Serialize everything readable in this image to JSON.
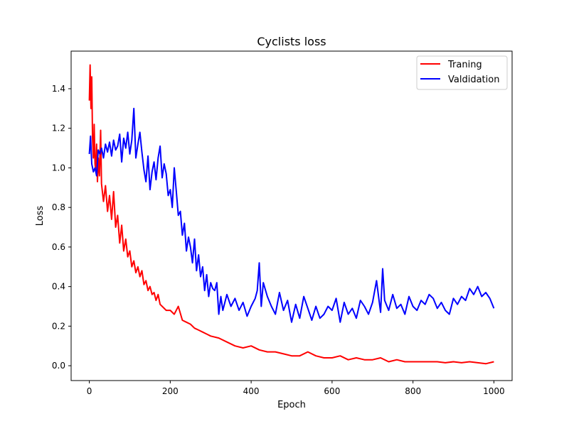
{
  "chart_data": {
    "type": "line",
    "title": "Cyclists loss",
    "xlabel": "Epoch",
    "ylabel": "Loss",
    "xlim": [
      -45,
      1045
    ],
    "ylim": [
      -0.075,
      1.59
    ],
    "xticks": [
      0,
      200,
      400,
      600,
      800,
      1000
    ],
    "yticks": [
      0.0,
      0.2,
      0.4,
      0.6,
      0.8,
      1.0,
      1.2,
      1.4
    ],
    "xtick_labels": [
      "0",
      "200",
      "400",
      "600",
      "800",
      "1000"
    ],
    "ytick_labels": [
      "0.0",
      "0.2",
      "0.4",
      "0.6",
      "0.8",
      "1.0",
      "1.2",
      "1.4"
    ],
    "grid": false,
    "legend_position": "top-right",
    "series": [
      {
        "name": "Traning",
        "color": "#ff0000",
        "x": [
          0,
          2,
          4,
          6,
          8,
          10,
          12,
          14,
          16,
          18,
          20,
          22,
          25,
          28,
          30,
          35,
          40,
          45,
          50,
          55,
          60,
          65,
          70,
          75,
          80,
          85,
          90,
          95,
          100,
          105,
          110,
          115,
          120,
          125,
          130,
          135,
          140,
          145,
          150,
          155,
          160,
          165,
          170,
          175,
          180,
          190,
          200,
          210,
          220,
          230,
          240,
          250,
          260,
          270,
          280,
          290,
          300,
          320,
          340,
          360,
          380,
          400,
          420,
          440,
          460,
          480,
          500,
          520,
          540,
          560,
          580,
          600,
          620,
          640,
          660,
          680,
          700,
          720,
          740,
          760,
          780,
          800,
          820,
          840,
          860,
          880,
          900,
          920,
          940,
          960,
          980,
          1000
        ],
        "y": [
          1.34,
          1.52,
          1.3,
          1.46,
          1.15,
          1.05,
          1.22,
          1.02,
          0.98,
          1.12,
          0.93,
          1.05,
          0.96,
          1.19,
          0.92,
          0.83,
          0.91,
          0.78,
          0.86,
          0.74,
          0.88,
          0.7,
          0.76,
          0.62,
          0.71,
          0.58,
          0.64,
          0.55,
          0.58,
          0.5,
          0.53,
          0.47,
          0.5,
          0.45,
          0.48,
          0.41,
          0.43,
          0.38,
          0.4,
          0.36,
          0.37,
          0.33,
          0.36,
          0.31,
          0.3,
          0.28,
          0.28,
          0.26,
          0.3,
          0.23,
          0.22,
          0.21,
          0.19,
          0.18,
          0.17,
          0.16,
          0.15,
          0.14,
          0.12,
          0.1,
          0.09,
          0.1,
          0.08,
          0.07,
          0.07,
          0.06,
          0.05,
          0.05,
          0.07,
          0.05,
          0.04,
          0.04,
          0.05,
          0.03,
          0.04,
          0.03,
          0.03,
          0.04,
          0.02,
          0.03,
          0.02,
          0.02,
          0.02,
          0.02,
          0.02,
          0.015,
          0.02,
          0.015,
          0.02,
          0.015,
          0.01,
          0.02
        ]
      },
      {
        "name": "Valdidation",
        "color": "#0000ff",
        "x": [
          0,
          3,
          6,
          10,
          14,
          18,
          22,
          26,
          30,
          35,
          40,
          45,
          50,
          55,
          60,
          65,
          70,
          75,
          80,
          85,
          90,
          95,
          100,
          105,
          110,
          115,
          120,
          125,
          130,
          135,
          140,
          145,
          150,
          155,
          160,
          165,
          170,
          175,
          180,
          185,
          190,
          195,
          200,
          205,
          210,
          215,
          220,
          225,
          230,
          235,
          240,
          245,
          250,
          255,
          260,
          265,
          270,
          275,
          280,
          285,
          290,
          295,
          300,
          305,
          310,
          315,
          320,
          325,
          330,
          340,
          350,
          360,
          370,
          380,
          390,
          400,
          410,
          415,
          420,
          425,
          430,
          440,
          450,
          460,
          470,
          480,
          490,
          500,
          510,
          520,
          530,
          540,
          550,
          560,
          570,
          580,
          590,
          600,
          610,
          620,
          630,
          640,
          650,
          660,
          670,
          680,
          690,
          700,
          710,
          720,
          725,
          730,
          740,
          750,
          760,
          770,
          780,
          790,
          800,
          810,
          820,
          830,
          840,
          850,
          860,
          870,
          880,
          890,
          900,
          910,
          920,
          930,
          940,
          950,
          960,
          970,
          980,
          990,
          1000
        ],
        "y": [
          1.07,
          1.16,
          1.02,
          0.98,
          1.0,
          0.96,
          1.09,
          1.07,
          1.1,
          1.05,
          1.12,
          1.08,
          1.13,
          1.06,
          1.14,
          1.09,
          1.11,
          1.17,
          1.03,
          1.15,
          1.1,
          1.18,
          1.07,
          1.14,
          1.3,
          1.05,
          1.12,
          1.18,
          1.08,
          0.99,
          0.93,
          1.06,
          0.89,
          0.98,
          1.03,
          0.94,
          1.05,
          1.11,
          0.95,
          1.02,
          0.97,
          0.86,
          0.89,
          0.8,
          1.0,
          0.88,
          0.76,
          0.78,
          0.66,
          0.72,
          0.58,
          0.65,
          0.6,
          0.52,
          0.64,
          0.48,
          0.56,
          0.45,
          0.5,
          0.38,
          0.46,
          0.35,
          0.42,
          0.39,
          0.38,
          0.42,
          0.26,
          0.35,
          0.28,
          0.36,
          0.3,
          0.34,
          0.28,
          0.32,
          0.25,
          0.3,
          0.34,
          0.38,
          0.52,
          0.3,
          0.42,
          0.35,
          0.3,
          0.26,
          0.37,
          0.28,
          0.33,
          0.22,
          0.31,
          0.24,
          0.35,
          0.29,
          0.23,
          0.3,
          0.24,
          0.26,
          0.3,
          0.28,
          0.34,
          0.22,
          0.32,
          0.26,
          0.29,
          0.24,
          0.33,
          0.3,
          0.26,
          0.32,
          0.43,
          0.27,
          0.49,
          0.33,
          0.28,
          0.36,
          0.29,
          0.31,
          0.26,
          0.35,
          0.3,
          0.28,
          0.33,
          0.31,
          0.36,
          0.34,
          0.29,
          0.32,
          0.28,
          0.26,
          0.34,
          0.31,
          0.35,
          0.33,
          0.39,
          0.36,
          0.4,
          0.35,
          0.37,
          0.34,
          0.29
        ]
      }
    ]
  }
}
